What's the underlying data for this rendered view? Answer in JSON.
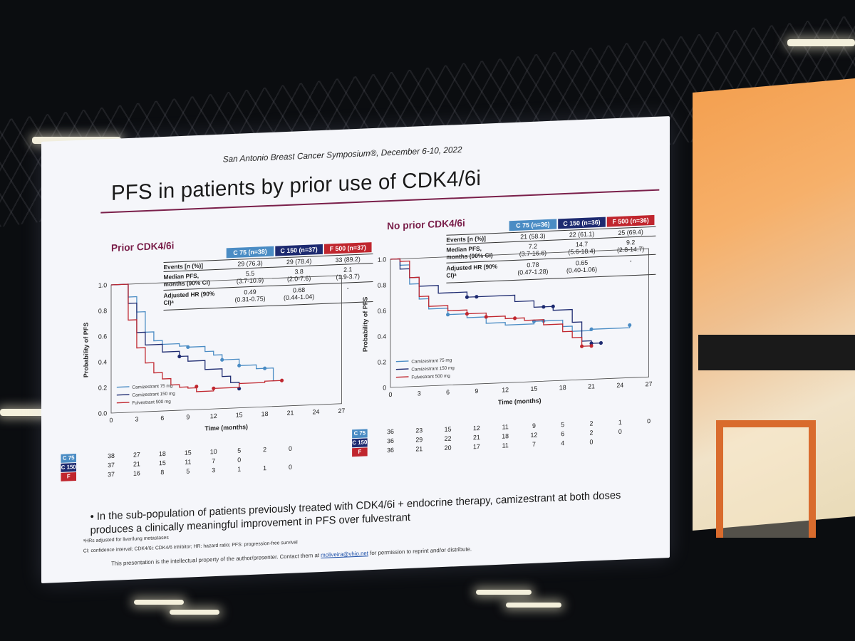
{
  "slide": {
    "header": "San Antonio Breast Cancer Symposium®, December 6-10, 2022",
    "title": "PFS in patients by prior use of CDK4/6i",
    "bullet": "In the sub-population of patients previously treated with CDK4/6i + endocrine therapy, camizestrant at both doses produces a clinically meaningful improvement in PFS over fulvestrant",
    "footnote_hr": "ᵃHRs adjusted for liver/lung metastases",
    "footnote_abbrev": "CI: confidence interval; CDK4/6i: CDK4/6 inhibitor; HR: hazard ratio; PFS: progression-free survival",
    "footer_prefix": "This presentation is the intellectual property of the author/presenter. Contact them at",
    "footer_email": "moliveira@vhio.net",
    "footer_suffix": "for permission to reprint and/or distribute."
  },
  "colors": {
    "c75": "#4a8cc4",
    "c150": "#1d2a70",
    "f500": "#c0262e",
    "accent": "#7a1f4a"
  },
  "chart_data": [
    {
      "type": "line",
      "title": "Prior CDK4/6i",
      "xlabel": "Time (months)",
      "ylabel": "Probability of PFS",
      "xlim": [
        0,
        27
      ],
      "ylim": [
        0,
        1.0
      ],
      "x_ticks": [
        "0",
        "3",
        "6",
        "9",
        "12",
        "15",
        "18",
        "21",
        "24",
        "27"
      ],
      "y_ticks": [
        "0.0",
        "0.2",
        "0.4",
        "0.6",
        "0.8",
        "1.0"
      ],
      "legend": [
        "Camizestrant 75 mg",
        "Camizestrant 150 mg",
        "Fulvestrant 500 mg"
      ],
      "table": {
        "columns": [
          "C 75 (n=38)",
          "C 150 (n=37)",
          "F 500 (n=37)"
        ],
        "rows": [
          {
            "label": "Events [n (%)]",
            "values": [
              "29 (76.3)",
              "29 (78.4)",
              "33 (89.2)"
            ]
          },
          {
            "label": "Median PFS, months (90% CI)",
            "values": [
              "5.5\n(3.7-10.9)",
              "3.8\n(2.0-7.6)",
              "2.1\n(1.9-3.7)"
            ]
          },
          {
            "label": "Adjusted HR (90% CI)ᵃ",
            "values": [
              "0.49\n(0.31-0.75)",
              "0.68\n(0.44-1.04)",
              "-"
            ]
          }
        ]
      },
      "series": [
        {
          "name": "Camizestrant 75 mg",
          "key": "c75",
          "x": [
            0,
            2,
            3,
            4,
            5,
            6,
            8,
            9,
            11,
            12,
            13,
            15,
            17,
            19
          ],
          "y": [
            1.0,
            0.9,
            0.78,
            0.62,
            0.55,
            0.52,
            0.5,
            0.49,
            0.45,
            0.42,
            0.38,
            0.33,
            0.3,
            0.2
          ],
          "censor_x": [
            9,
            13,
            15,
            18
          ],
          "censor_y": [
            0.49,
            0.38,
            0.33,
            0.3
          ]
        },
        {
          "name": "Camizestrant 150 mg",
          "key": "c150",
          "x": [
            0,
            2,
            3,
            4,
            6,
            8,
            9,
            11,
            13,
            14,
            15
          ],
          "y": [
            1.0,
            0.85,
            0.62,
            0.52,
            0.46,
            0.42,
            0.38,
            0.31,
            0.25,
            0.2,
            0.15
          ],
          "censor_x": [
            8,
            15
          ],
          "censor_y": [
            0.42,
            0.15
          ]
        },
        {
          "name": "Fulvestrant 500 mg",
          "key": "f500",
          "x": [
            0,
            2,
            3,
            4,
            5,
            6,
            7,
            8,
            9,
            10,
            12,
            15,
            18,
            20
          ],
          "y": [
            1.0,
            0.72,
            0.5,
            0.38,
            0.3,
            0.25,
            0.2,
            0.18,
            0.17,
            0.14,
            0.16,
            0.19,
            0.2,
            0.2
          ],
          "censor_x": [
            10,
            12,
            20
          ],
          "censor_y": [
            0.18,
            0.16,
            0.2
          ]
        }
      ],
      "at_risk": {
        "labels": [
          "C 75",
          "C 150",
          "F"
        ],
        "rows": [
          [
            "38",
            "27",
            "18",
            "15",
            "10",
            "5",
            "2",
            "0"
          ],
          [
            "37",
            "21",
            "15",
            "11",
            "7",
            "0",
            "",
            ""
          ],
          [
            "37",
            "16",
            "8",
            "5",
            "3",
            "1",
            "1",
            "0"
          ]
        ]
      }
    },
    {
      "type": "line",
      "title": "No prior CDK4/6i",
      "xlabel": "Time (months)",
      "ylabel": "Probability of PFS",
      "xlim": [
        0,
        27
      ],
      "ylim": [
        0,
        1.0
      ],
      "x_ticks": [
        "0",
        "3",
        "6",
        "9",
        "12",
        "15",
        "18",
        "21",
        "24",
        "27"
      ],
      "y_ticks": [
        "0",
        "0.2",
        "0.4",
        "0.6",
        "0.8",
        "1.0"
      ],
      "legend": [
        "Camizestrant 75 mg",
        "Camizestrant 150 mg",
        "Fulvestrant 500 mg"
      ],
      "table": {
        "columns": [
          "C 75 (n=36)",
          "C 150 (n=36)",
          "F 500 (n=36)"
        ],
        "rows": [
          {
            "label": "Events [n (%)]",
            "values": [
              "21 (58.3)",
              "22 (61.1)",
              "25 (69.4)"
            ]
          },
          {
            "label": "Median PFS, months (90% CI)",
            "values": [
              "7.2\n(3.7-16.6)",
              "14.7\n(5.6-18.4)",
              "9.2\n(2.8-14.7)"
            ]
          },
          {
            "label": "Adjusted HR (90% CI)ᵃ",
            "values": [
              "0.78\n(0.47-1.28)",
              "0.65\n(0.40-1.06)",
              "-"
            ]
          }
        ]
      },
      "series": [
        {
          "name": "Camizestrant 75 mg",
          "key": "c75",
          "x": [
            0,
            1,
            2,
            3,
            4,
            6,
            8,
            10,
            12,
            15,
            17,
            18,
            19,
            21,
            25
          ],
          "y": [
            1.0,
            0.95,
            0.8,
            0.68,
            0.6,
            0.55,
            0.52,
            0.47,
            0.45,
            0.47,
            0.47,
            0.42,
            0.38,
            0.39,
            0.41
          ],
          "censor_x": [
            6,
            15,
            16,
            21,
            25
          ],
          "censor_y": [
            0.55,
            0.47,
            0.47,
            0.39,
            0.41
          ]
        },
        {
          "name": "Camizestrant 150 mg",
          "key": "c150",
          "x": [
            0,
            1,
            2,
            3,
            5,
            8,
            10,
            13,
            15,
            17,
            19,
            20,
            21,
            22
          ],
          "y": [
            1.0,
            0.92,
            0.85,
            0.78,
            0.72,
            0.68,
            0.68,
            0.63,
            0.58,
            0.55,
            0.45,
            0.3,
            0.28,
            0.28
          ],
          "censor_x": [
            8,
            9,
            16,
            17,
            21,
            22
          ],
          "censor_y": [
            0.68,
            0.68,
            0.58,
            0.58,
            0.28,
            0.28
          ]
        },
        {
          "name": "Fulvestrant 500 mg",
          "key": "f500",
          "x": [
            0,
            1,
            2,
            3,
            4,
            6,
            8,
            10,
            12,
            14,
            16,
            18,
            19,
            20,
            21
          ],
          "y": [
            1.0,
            0.98,
            0.85,
            0.7,
            0.62,
            0.58,
            0.55,
            0.52,
            0.5,
            0.48,
            0.44,
            0.38,
            0.33,
            0.26,
            0.26
          ],
          "censor_x": [
            8,
            10,
            13,
            20,
            21
          ],
          "censor_y": [
            0.55,
            0.52,
            0.5,
            0.26,
            0.26
          ]
        }
      ],
      "at_risk": {
        "labels": [
          "C 75",
          "C 150",
          "F"
        ],
        "rows": [
          [
            "36",
            "23",
            "15",
            "12",
            "11",
            "9",
            "5",
            "2",
            "1",
            "0"
          ],
          [
            "36",
            "29",
            "22",
            "21",
            "18",
            "12",
            "6",
            "2",
            "0",
            ""
          ],
          [
            "36",
            "21",
            "20",
            "17",
            "11",
            "7",
            "4",
            "0",
            "",
            ""
          ]
        ]
      }
    }
  ]
}
